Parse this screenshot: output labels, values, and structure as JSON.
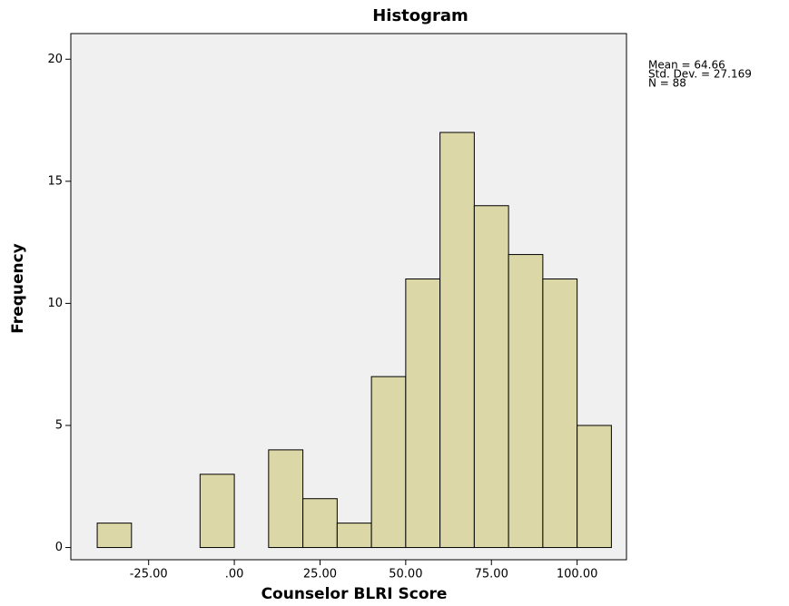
{
  "chart_data": {
    "type": "histogram",
    "title": "Histogram",
    "x_label": "Counselor BLRI Score",
    "y_label": "Frequency",
    "bins": [
      -40,
      -30,
      -20,
      -10,
      0,
      10,
      20,
      30,
      40,
      50,
      60,
      70,
      80,
      90,
      100,
      110
    ],
    "counts": [
      1,
      0,
      0,
      3,
      0,
      4,
      2,
      1,
      7,
      11,
      17,
      14,
      12,
      11,
      5
    ],
    "color": "#dcd7a6",
    "xlim": [
      -47.7,
      114.4
    ],
    "xticks": [
      {
        "value": -25,
        "label": "-25.00"
      },
      {
        "value": 0,
        "label": ".00"
      },
      {
        "value": 25,
        "label": "25.00"
      },
      {
        "value": 50,
        "label": "50.00"
      },
      {
        "value": 75,
        "label": "75.00"
      },
      {
        "value": 100,
        "label": "100.00"
      }
    ],
    "ylim": [
      -0.5,
      21.05
    ],
    "yticks": [
      0,
      5,
      10,
      15,
      20
    ],
    "annotations": [
      "Mean = 64.66",
      "Std. Dev. = 27.169",
      "N = 88"
    ]
  }
}
